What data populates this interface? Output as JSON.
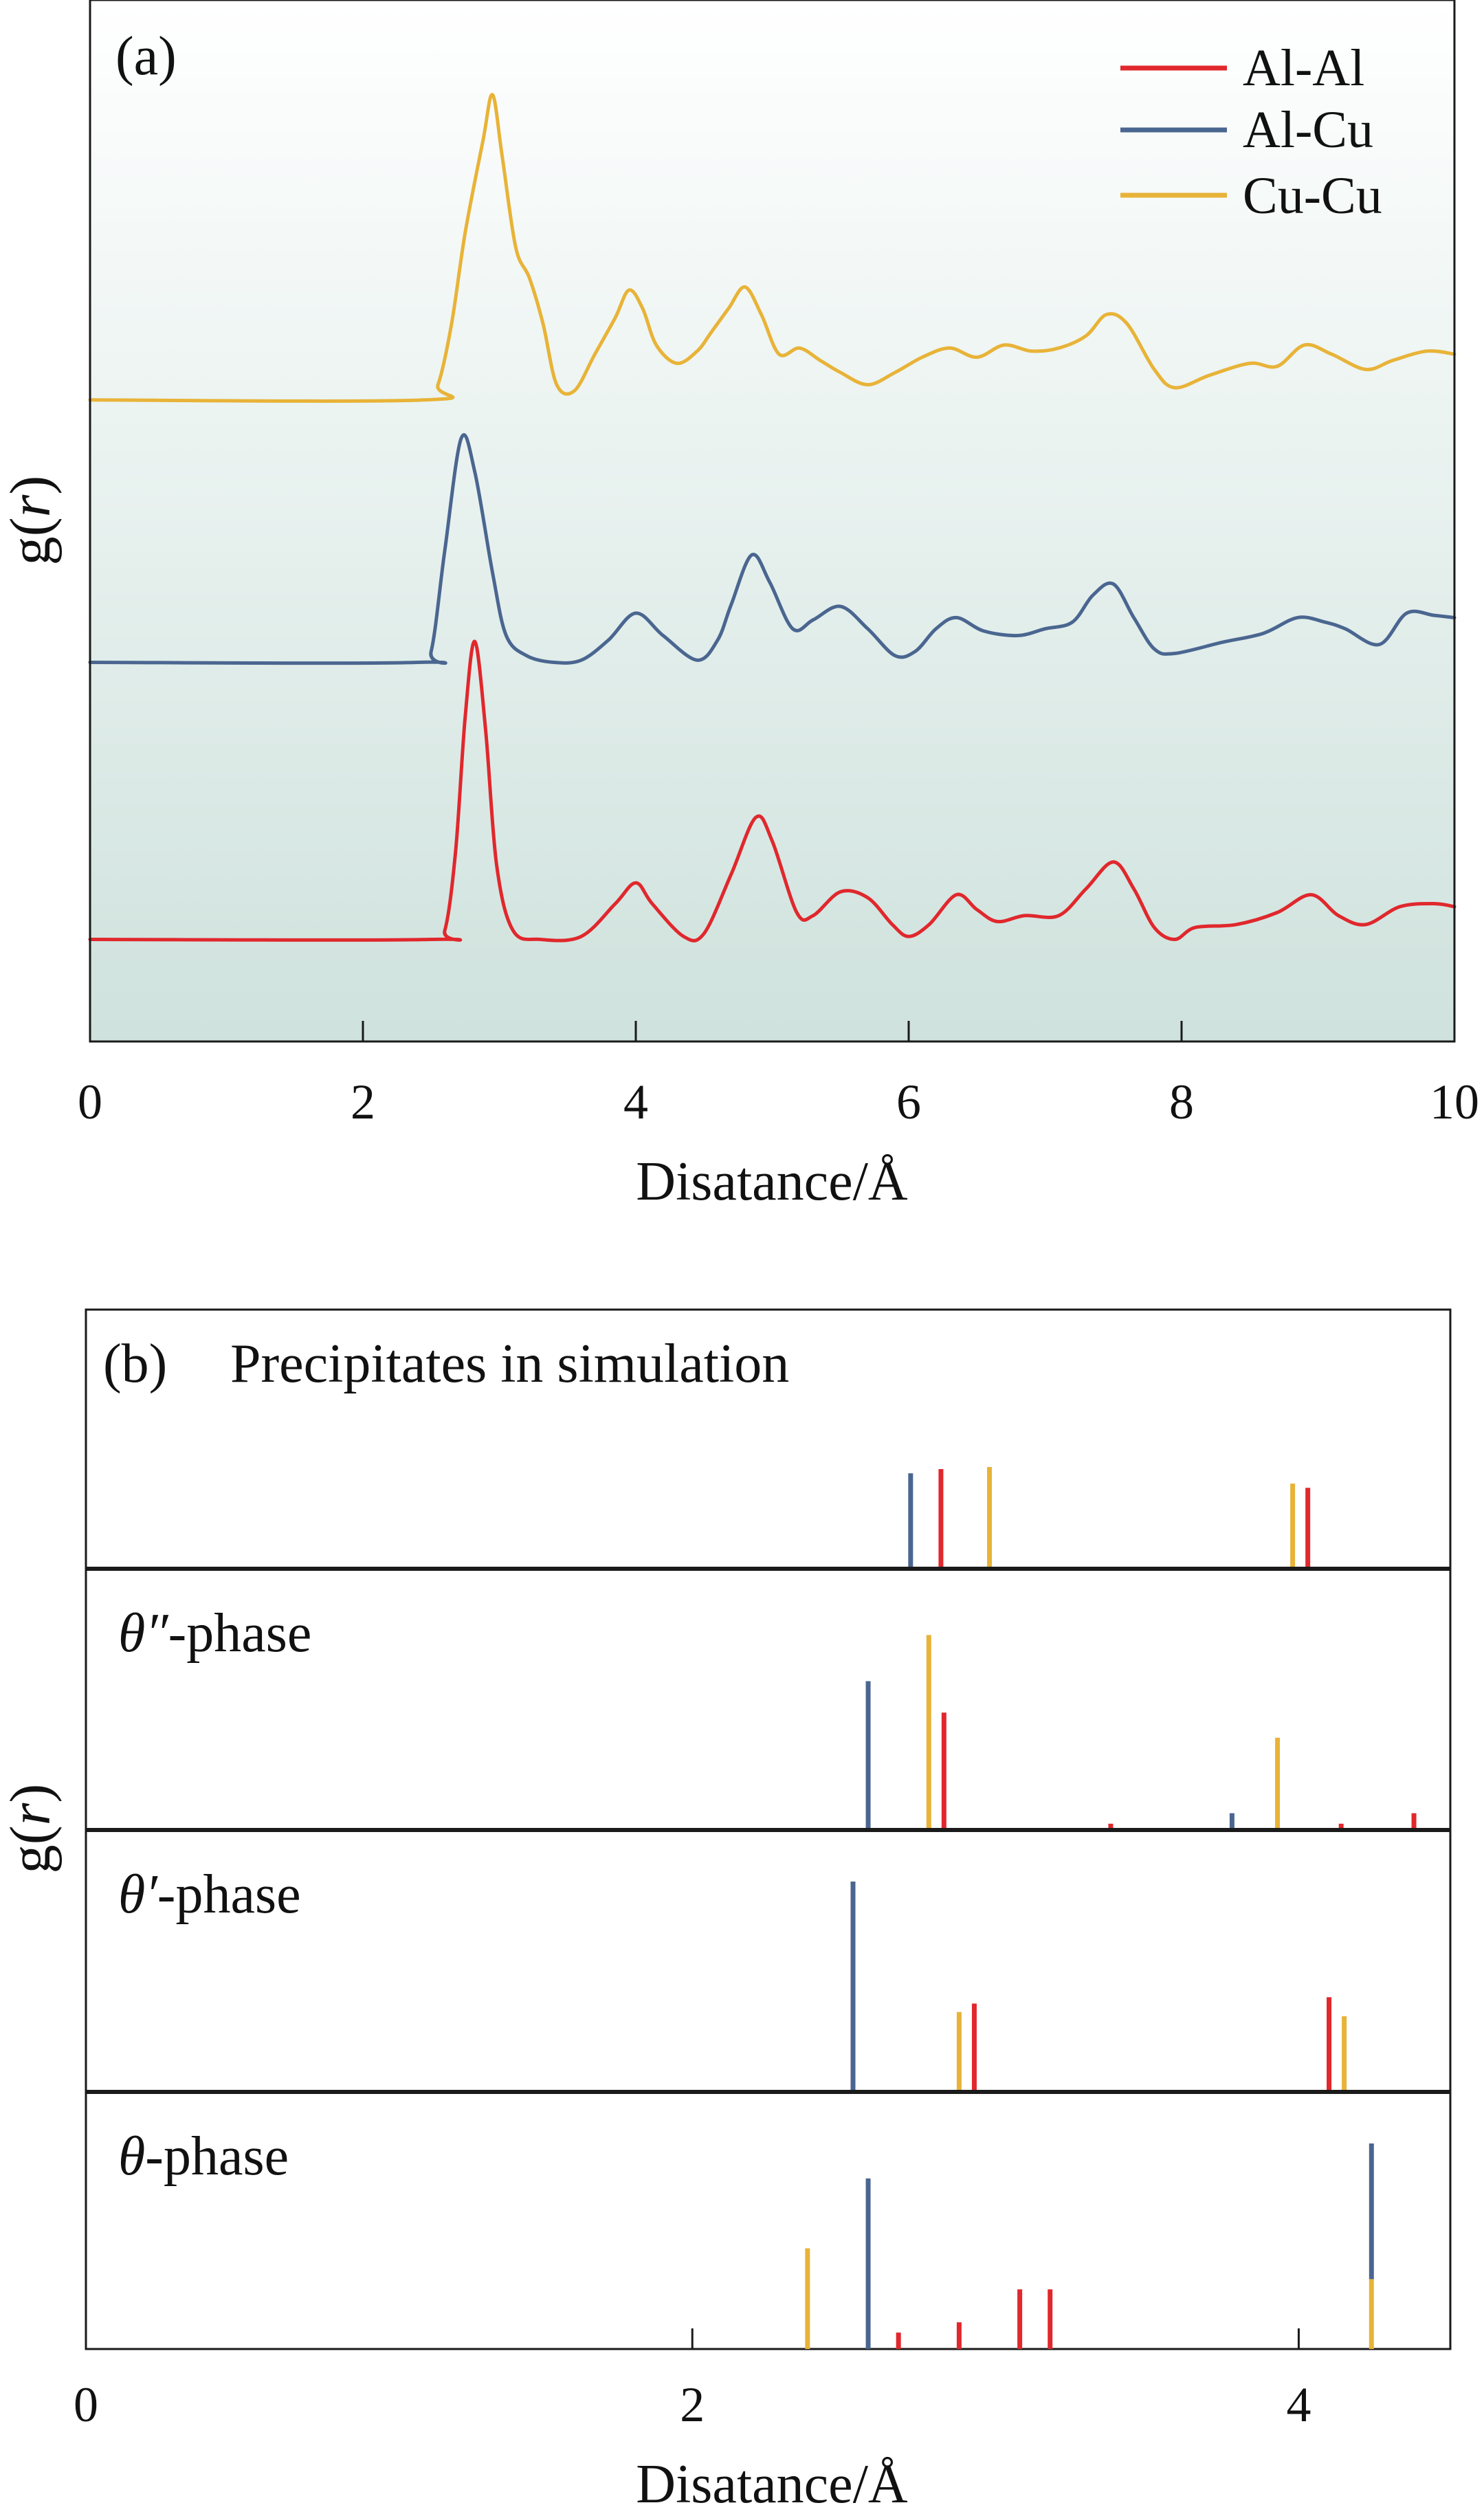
{
  "chart_data": [
    {
      "type": "line",
      "panel_label": "(a)",
      "xlabel": "Disatance/Å",
      "ylabel_prefix": "g(",
      "ylabel_var": "r",
      "ylabel_suffix": ")",
      "xlim": [
        0,
        10
      ],
      "ylim": [
        0,
        1
      ],
      "x_ticks": [
        0,
        2,
        4,
        6,
        8,
        10
      ],
      "x_tick_labels": [
        "0",
        "2",
        "4",
        "6",
        "8",
        "10"
      ],
      "legend_position": "top-right",
      "series": [
        {
          "name": "Al-Al",
          "color": "#e0282d",
          "offset": 0.098,
          "scale": 0.286,
          "points": [
            [
              0,
              0
            ],
            [
              2.5,
              0
            ],
            [
              2.6,
              0.03
            ],
            [
              2.68,
              0.3
            ],
            [
              2.75,
              0.75
            ],
            [
              2.82,
              1.0
            ],
            [
              2.9,
              0.7
            ],
            [
              2.98,
              0.25
            ],
            [
              3.1,
              0.03
            ],
            [
              3.3,
              0
            ],
            [
              3.6,
              0.01
            ],
            [
              3.85,
              0.12
            ],
            [
              4.0,
              0.19
            ],
            [
              4.12,
              0.12
            ],
            [
              4.35,
              0.01
            ],
            [
              4.5,
              0.02
            ],
            [
              4.7,
              0.22
            ],
            [
              4.88,
              0.41
            ],
            [
              5.0,
              0.33
            ],
            [
              5.18,
              0.09
            ],
            [
              5.3,
              0.08
            ],
            [
              5.5,
              0.16
            ],
            [
              5.7,
              0.14
            ],
            [
              5.88,
              0.05
            ],
            [
              6.0,
              0.01
            ],
            [
              6.15,
              0.05
            ],
            [
              6.35,
              0.15
            ],
            [
              6.5,
              0.1
            ],
            [
              6.65,
              0.06
            ],
            [
              6.85,
              0.08
            ],
            [
              7.1,
              0.08
            ],
            [
              7.3,
              0.17
            ],
            [
              7.5,
              0.26
            ],
            [
              7.65,
              0.17
            ],
            [
              7.8,
              0.04
            ],
            [
              7.95,
              0.0
            ],
            [
              8.1,
              0.04
            ],
            [
              8.4,
              0.05
            ],
            [
              8.7,
              0.09
            ],
            [
              8.95,
              0.15
            ],
            [
              9.15,
              0.08
            ],
            [
              9.35,
              0.05
            ],
            [
              9.6,
              0.11
            ],
            [
              9.85,
              0.12
            ],
            [
              10,
              0.11
            ]
          ]
        },
        {
          "name": "Al-Cu",
          "color": "#4a6690",
          "offset": 0.364,
          "scale": 0.215,
          "points": [
            [
              0,
              0
            ],
            [
              2.4,
              0
            ],
            [
              2.5,
              0.05
            ],
            [
              2.6,
              0.5
            ],
            [
              2.72,
              1.0
            ],
            [
              2.82,
              0.85
            ],
            [
              2.95,
              0.4
            ],
            [
              3.05,
              0.12
            ],
            [
              3.2,
              0.03
            ],
            [
              3.4,
              0
            ],
            [
              3.6,
              0.01
            ],
            [
              3.8,
              0.1
            ],
            [
              4.0,
              0.22
            ],
            [
              4.2,
              0.12
            ],
            [
              4.45,
              0.01
            ],
            [
              4.6,
              0.1
            ],
            [
              4.7,
              0.26
            ],
            [
              4.85,
              0.48
            ],
            [
              4.98,
              0.36
            ],
            [
              5.15,
              0.15
            ],
            [
              5.3,
              0.19
            ],
            [
              5.5,
              0.25
            ],
            [
              5.7,
              0.15
            ],
            [
              5.9,
              0.03
            ],
            [
              6.05,
              0.05
            ],
            [
              6.2,
              0.15
            ],
            [
              6.35,
              0.2
            ],
            [
              6.55,
              0.14
            ],
            [
              6.8,
              0.12
            ],
            [
              7.0,
              0.15
            ],
            [
              7.2,
              0.18
            ],
            [
              7.35,
              0.3
            ],
            [
              7.5,
              0.35
            ],
            [
              7.65,
              0.2
            ],
            [
              7.8,
              0.06
            ],
            [
              7.95,
              0.04
            ],
            [
              8.3,
              0.09
            ],
            [
              8.6,
              0.13
            ],
            [
              8.85,
              0.2
            ],
            [
              9.05,
              0.18
            ],
            [
              9.2,
              0.15
            ],
            [
              9.45,
              0.08
            ],
            [
              9.65,
              0.22
            ],
            [
              9.85,
              0.21
            ],
            [
              10,
              0.2
            ]
          ]
        },
        {
          "name": "Cu-Cu",
          "color": "#e8b338",
          "offset": 0.616,
          "scale": 0.293,
          "points": [
            [
              0,
              0
            ],
            [
              2.45,
              0
            ],
            [
              2.55,
              0.05
            ],
            [
              2.65,
              0.25
            ],
            [
              2.75,
              0.55
            ],
            [
              2.88,
              0.85
            ],
            [
              2.95,
              1.0
            ],
            [
              3.02,
              0.8
            ],
            [
              3.12,
              0.5
            ],
            [
              3.22,
              0.4
            ],
            [
              3.32,
              0.25
            ],
            [
              3.42,
              0.05
            ],
            [
              3.55,
              0.03
            ],
            [
              3.7,
              0.15
            ],
            [
              3.85,
              0.27
            ],
            [
              3.95,
              0.36
            ],
            [
              4.05,
              0.3
            ],
            [
              4.15,
              0.18
            ],
            [
              4.3,
              0.12
            ],
            [
              4.45,
              0.16
            ],
            [
              4.55,
              0.22
            ],
            [
              4.68,
              0.3
            ],
            [
              4.8,
              0.37
            ],
            [
              4.92,
              0.28
            ],
            [
              5.05,
              0.15
            ],
            [
              5.2,
              0.17
            ],
            [
              5.35,
              0.13
            ],
            [
              5.5,
              0.09
            ],
            [
              5.7,
              0.05
            ],
            [
              5.9,
              0.09
            ],
            [
              6.1,
              0.14
            ],
            [
              6.3,
              0.17
            ],
            [
              6.5,
              0.14
            ],
            [
              6.7,
              0.18
            ],
            [
              6.9,
              0.16
            ],
            [
              7.1,
              0.17
            ],
            [
              7.3,
              0.21
            ],
            [
              7.45,
              0.28
            ],
            [
              7.6,
              0.25
            ],
            [
              7.8,
              0.1
            ],
            [
              7.95,
              0.04
            ],
            [
              8.2,
              0.08
            ],
            [
              8.5,
              0.12
            ],
            [
              8.7,
              0.11
            ],
            [
              8.9,
              0.18
            ],
            [
              9.1,
              0.15
            ],
            [
              9.35,
              0.1
            ],
            [
              9.55,
              0.13
            ],
            [
              9.8,
              0.16
            ],
            [
              10,
              0.15
            ]
          ]
        }
      ]
    },
    {
      "type": "bar",
      "panel_label": "(b)",
      "xlabel": "Disatance/Å",
      "ylabel_prefix": "g(",
      "ylabel_var": "r",
      "ylabel_suffix": ")",
      "xlim": [
        0,
        4.5
      ],
      "x_ticks": [
        0,
        2,
        4
      ],
      "x_tick_labels": [
        "0",
        "2",
        "4"
      ],
      "colors": {
        "Al-Al": "#e0282d",
        "Al-Cu": "#4a6690",
        "Cu-Cu": "#e8b338"
      },
      "rows": [
        {
          "label_italic": "",
          "label_rest": "Precipitates in simulation",
          "sticks": [
            {
              "x": 2.72,
              "h": 0.46,
              "s": "Al-Cu"
            },
            {
              "x": 2.82,
              "h": 0.48,
              "s": "Al-Al"
            },
            {
              "x": 2.98,
              "h": 0.49,
              "s": "Cu-Cu"
            },
            {
              "x": 3.98,
              "h": 0.41,
              "s": "Cu-Cu"
            },
            {
              "x": 4.03,
              "h": 0.39,
              "s": "Al-Al"
            }
          ]
        },
        {
          "label_italic": "θ″",
          "label_rest": "-phase",
          "sticks": [
            {
              "x": 2.58,
              "h": 0.71,
              "s": "Al-Cu"
            },
            {
              "x": 2.78,
              "h": 0.93,
              "s": "Cu-Cu"
            },
            {
              "x": 2.83,
              "h": 0.56,
              "s": "Al-Al"
            },
            {
              "x": 3.38,
              "h": 0.03,
              "s": "Al-Al"
            },
            {
              "x": 3.78,
              "h": 0.08,
              "s": "Al-Cu"
            },
            {
              "x": 3.93,
              "h": 0.44,
              "s": "Cu-Cu"
            },
            {
              "x": 4.14,
              "h": 0.03,
              "s": "Al-Al"
            },
            {
              "x": 4.38,
              "h": 0.08,
              "s": "Al-Al"
            }
          ]
        },
        {
          "label_italic": "θ′",
          "label_rest": "-phase",
          "sticks": [
            {
              "x": 2.53,
              "h": 1.0,
              "s": "Al-Cu"
            },
            {
              "x": 2.88,
              "h": 0.38,
              "s": "Cu-Cu"
            },
            {
              "x": 2.93,
              "h": 0.42,
              "s": "Al-Al"
            },
            {
              "x": 4.1,
              "h": 0.45,
              "s": "Al-Al"
            },
            {
              "x": 4.15,
              "h": 0.36,
              "s": "Cu-Cu"
            }
          ]
        },
        {
          "label_italic": "θ",
          "label_rest": "-phase",
          "sticks": [
            {
              "x": 2.38,
              "h": 0.49,
              "s": "Cu-Cu"
            },
            {
              "x": 2.58,
              "h": 0.83,
              "s": "Al-Cu"
            },
            {
              "x": 2.68,
              "h": 0.08,
              "s": "Al-Al"
            },
            {
              "x": 2.88,
              "h": 0.13,
              "s": "Al-Al"
            },
            {
              "x": 3.08,
              "h": 0.29,
              "s": "Al-Al"
            },
            {
              "x": 3.18,
              "h": 0.29,
              "s": "Al-Al"
            },
            {
              "x": 4.24,
              "h": 0.34,
              "s": "Cu-Cu"
            },
            {
              "x": 4.24,
              "h": 0.66,
              "s": "Al-Cu",
              "base": 0.34
            }
          ]
        }
      ]
    }
  ]
}
